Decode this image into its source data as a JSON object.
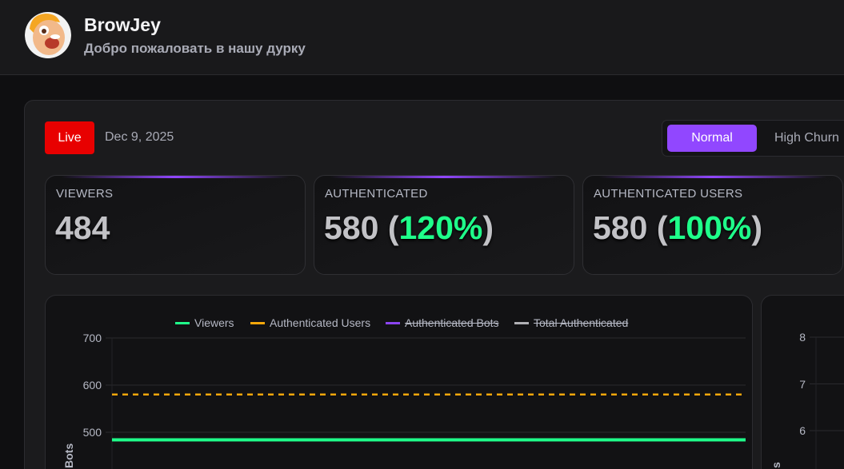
{
  "header": {
    "title": "BrowJey",
    "subtitle": "Добро пожаловать в нашу дурку",
    "avatar": "cartoon-face-avatar"
  },
  "status": {
    "live_label": "Live",
    "date": "Dec 9, 2025",
    "live_color": "#e80000"
  },
  "mode_toggle": {
    "options": [
      "Normal",
      "High Churn"
    ],
    "selected": "Normal",
    "accent": "#9147ff"
  },
  "stats": [
    {
      "label": "VIEWERS",
      "value": "484",
      "pct": ""
    },
    {
      "label": "AUTHENTICATED",
      "value": "580",
      "pct": "120%"
    },
    {
      "label": "AUTHENTICATED USERS",
      "value": "580",
      "pct": "100%"
    }
  ],
  "chart_data": [
    {
      "type": "line",
      "ylabel": "Bots",
      "yticks": [
        500,
        600,
        700
      ],
      "ylim": [
        400,
        700
      ],
      "grid": true,
      "legend": "top",
      "series": [
        {
          "name": "Viewers",
          "value": 484,
          "color": "#1fff8a",
          "style": "solid",
          "hidden": false
        },
        {
          "name": "Authenticated Users",
          "value": 580,
          "color": "#f5a70b",
          "style": "dashed",
          "hidden": false
        },
        {
          "name": "Authenticated Bots",
          "color": "#8b44f0",
          "hidden": true
        },
        {
          "name": "Total Authenticated",
          "color": "#b0b0b4",
          "hidden": true
        }
      ]
    },
    {
      "type": "line",
      "ylabel": "s",
      "yticks": [
        6,
        7,
        8
      ],
      "grid": true
    }
  ]
}
